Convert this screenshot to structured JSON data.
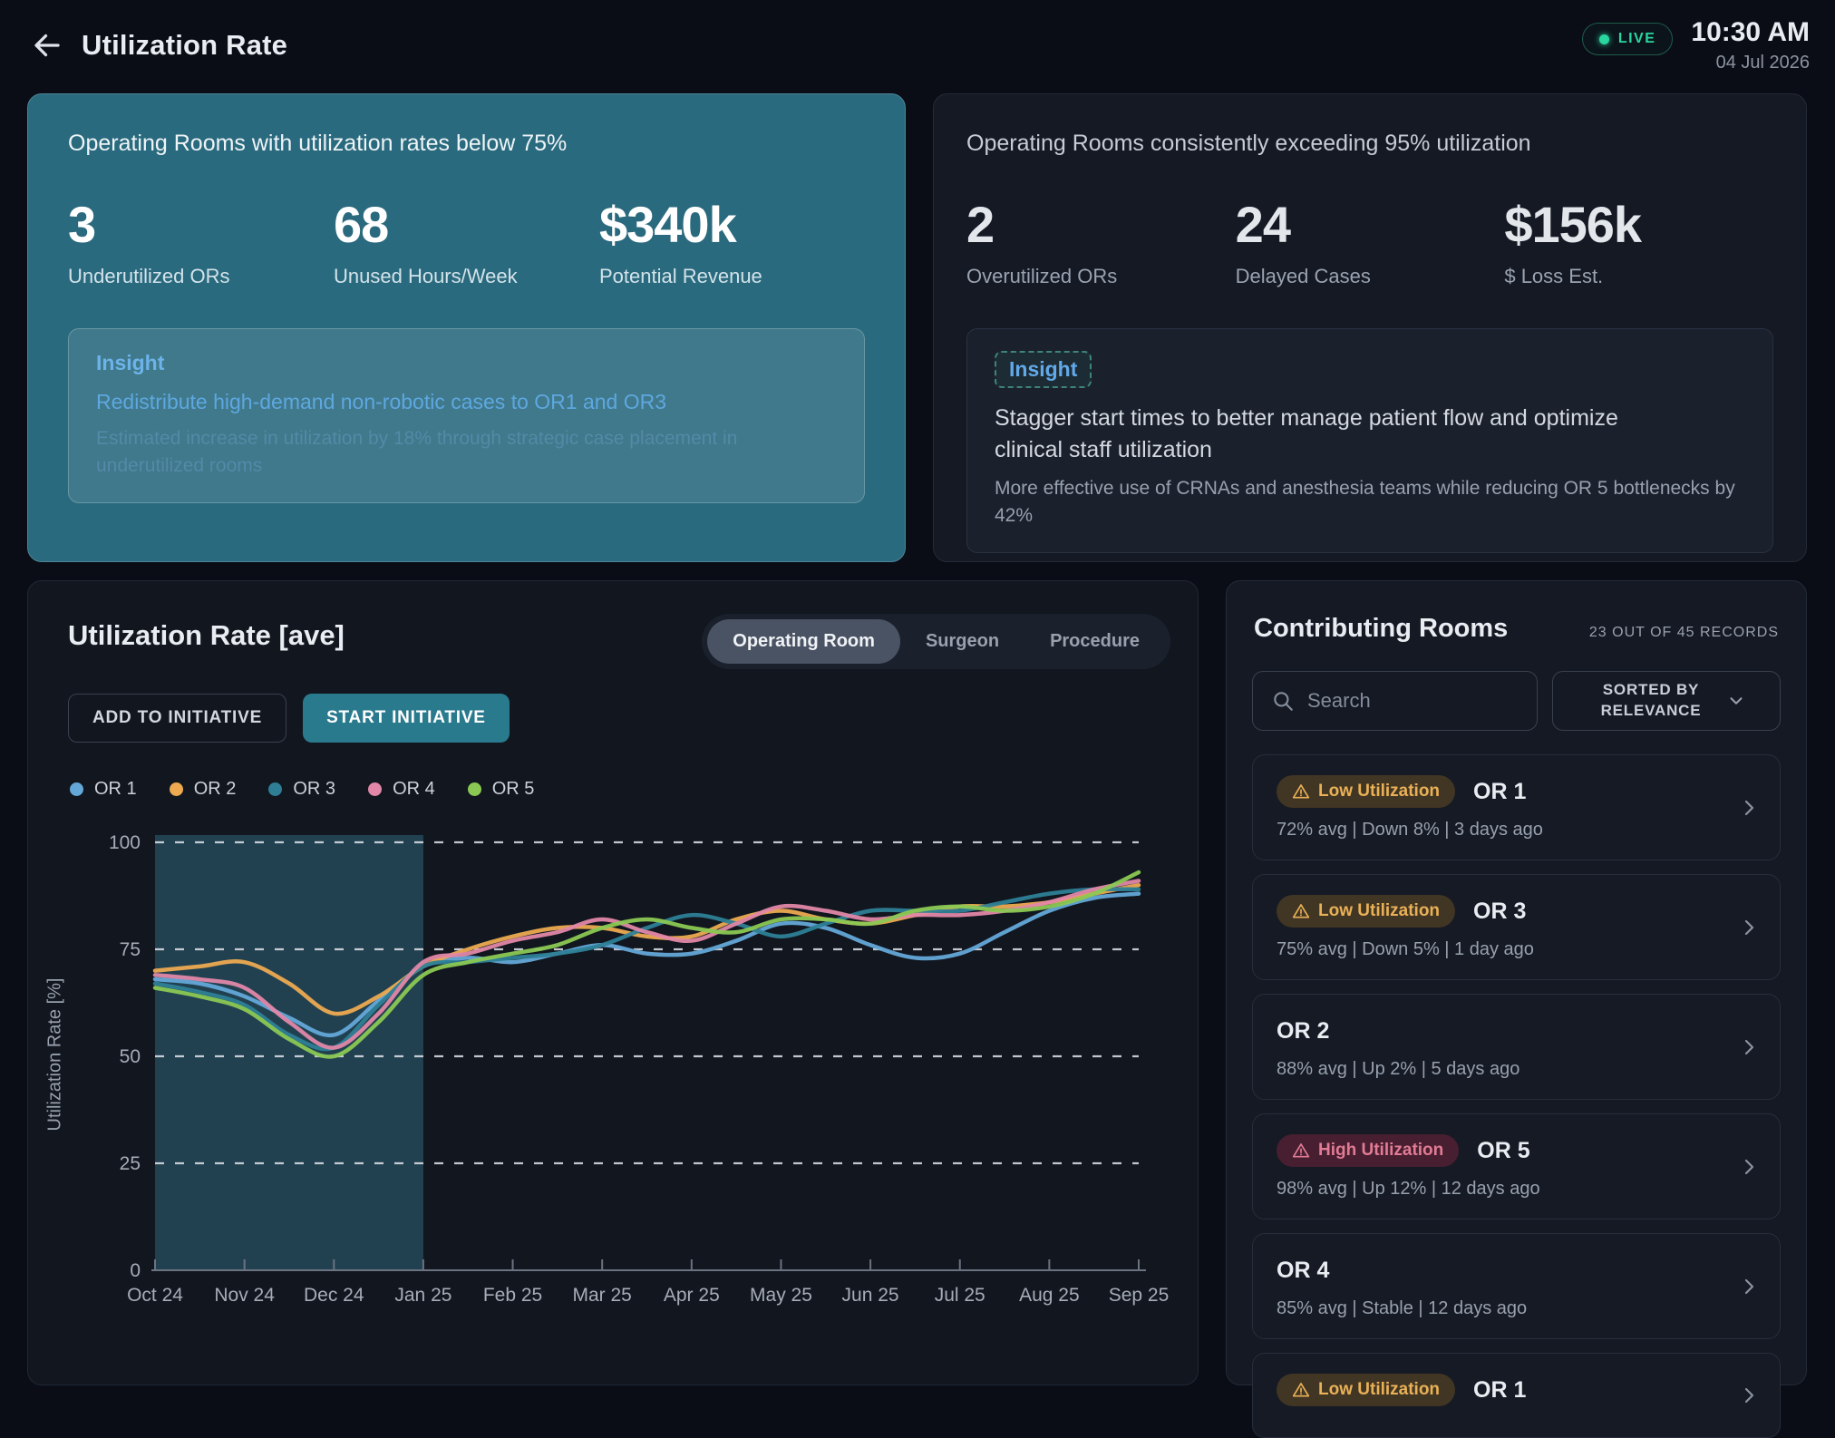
{
  "header": {
    "title": "Utilization Rate",
    "live_label": "LIVE",
    "time": "10:30 AM",
    "date": "04 Jul 2026"
  },
  "cards": {
    "left": {
      "title": "Operating Rooms with utilization rates below 75%",
      "stats": [
        {
          "value": "3",
          "label": "Underutilized ORs"
        },
        {
          "value": "68",
          "label": "Unused Hours/Week"
        },
        {
          "value": "$340k",
          "label": "Potential Revenue"
        }
      ],
      "insight": {
        "label": "Insight",
        "title": "Redistribute high-demand non-robotic cases to OR1 and OR3",
        "description": "Estimated increase in utilization by 18% through strategic case placement in underutilized rooms"
      }
    },
    "right": {
      "title": "Operating Rooms consistently exceeding 95% utilization",
      "stats": [
        {
          "value": "2",
          "label": "Overutilized ORs"
        },
        {
          "value": "24",
          "label": "Delayed Cases"
        },
        {
          "value": "$156k",
          "label": "$ Loss Est."
        }
      ],
      "insight": {
        "label": "Insight",
        "title": "Stagger start times to better manage patient flow and optimize clinical staff utilization",
        "description": "More effective use of CRNAs and anesthesia teams while reducing OR 5 bottlenecks by 42%"
      }
    }
  },
  "chart_panel": {
    "title": "Utilization Rate [ave]",
    "tabs": [
      {
        "label": "Operating Room",
        "active": true
      },
      {
        "label": "Surgeon",
        "active": false
      },
      {
        "label": "Procedure",
        "active": false
      }
    ],
    "buttons": {
      "add": "ADD TO INITIATIVE",
      "start": "START INITIATIVE"
    }
  },
  "chart_data": {
    "type": "line",
    "title": "Utilization Rate [ave]",
    "ylabel": "Utilization Rate [%]",
    "ylim": [
      0,
      100
    ],
    "yticks": [
      0,
      25,
      50,
      75,
      100
    ],
    "grid": "dashed-horizontal",
    "legend_position": "top-left",
    "x_labels": [
      "Oct 24",
      "Nov 24",
      "Dec 24",
      "Jan 25",
      "Feb 25",
      "Mar 25",
      "Apr 25",
      "May 25",
      "Jun 25",
      "Jul 25",
      "Aug 25",
      "Sep 25"
    ],
    "highlight_region": {
      "from": "Oct 24",
      "to": "Jan 25",
      "color": "#3a7e96"
    },
    "series": [
      {
        "name": "OR 1",
        "color": "#64a8d8",
        "values": [
          68,
          67,
          64,
          59,
          55,
          63,
          71,
          73,
          72,
          74,
          76,
          74,
          74,
          77,
          81,
          80,
          76,
          73,
          74,
          79,
          84,
          87,
          88
        ]
      },
      {
        "name": "OR 2",
        "color": "#edaa50",
        "values": [
          70,
          71,
          72,
          67,
          60,
          64,
          71,
          75,
          78,
          80,
          80,
          78,
          78,
          82,
          84,
          82,
          81,
          83,
          85,
          85,
          86,
          88,
          90
        ]
      },
      {
        "name": "OR 3",
        "color": "#2e7f96",
        "values": [
          67,
          65,
          62,
          55,
          52,
          62,
          71,
          72,
          73,
          74,
          76,
          80,
          83,
          81,
          78,
          81,
          84,
          84,
          84,
          86,
          88,
          89,
          89
        ]
      },
      {
        "name": "OR 4",
        "color": "#e287a8",
        "values": [
          69,
          68,
          66,
          58,
          52,
          60,
          72,
          74,
          77,
          79,
          82,
          79,
          77,
          81,
          85,
          84,
          82,
          83,
          83,
          84,
          86,
          89,
          91
        ]
      },
      {
        "name": "OR 5",
        "color": "#8bc853",
        "values": [
          66,
          64,
          61,
          54,
          50,
          58,
          69,
          72,
          74,
          76,
          80,
          82,
          80,
          79,
          82,
          82,
          81,
          84,
          85,
          84,
          85,
          88,
          93
        ]
      }
    ]
  },
  "rooms_panel": {
    "title": "Contributing Rooms",
    "records": "23 OUT OF 45 RECORDS",
    "search_placeholder": "Search",
    "sort_label": "SORTED BY RELEVANCE",
    "items": [
      {
        "badge": "Low Utilization",
        "badge_type": "low",
        "name": "OR 1",
        "meta": "72% avg | Down 8% | 3 days ago"
      },
      {
        "badge": "Low Utilization",
        "badge_type": "low",
        "name": "OR 3",
        "meta": "75% avg | Down 5% | 1 day ago"
      },
      {
        "badge": null,
        "badge_type": null,
        "name": "OR 2",
        "meta": "88% avg | Up 2% | 5 days ago"
      },
      {
        "badge": "High Utilization",
        "badge_type": "high",
        "name": "OR 5",
        "meta": "98% avg | Up 12% | 12 days ago"
      },
      {
        "badge": null,
        "badge_type": null,
        "name": "OR 4",
        "meta": "85% avg | Stable | 12 days ago"
      },
      {
        "badge": "Low Utilization",
        "badge_type": "low",
        "name": "OR 1",
        "meta": ""
      }
    ]
  },
  "colors": {
    "accent_teal": "#2a7a8e",
    "card_teal": "#2a6a7e",
    "live_green": "#29d6a0",
    "badge_low_text": "#e9b157",
    "badge_high_text": "#e27b95",
    "insight_blue": "#61a9e9"
  }
}
